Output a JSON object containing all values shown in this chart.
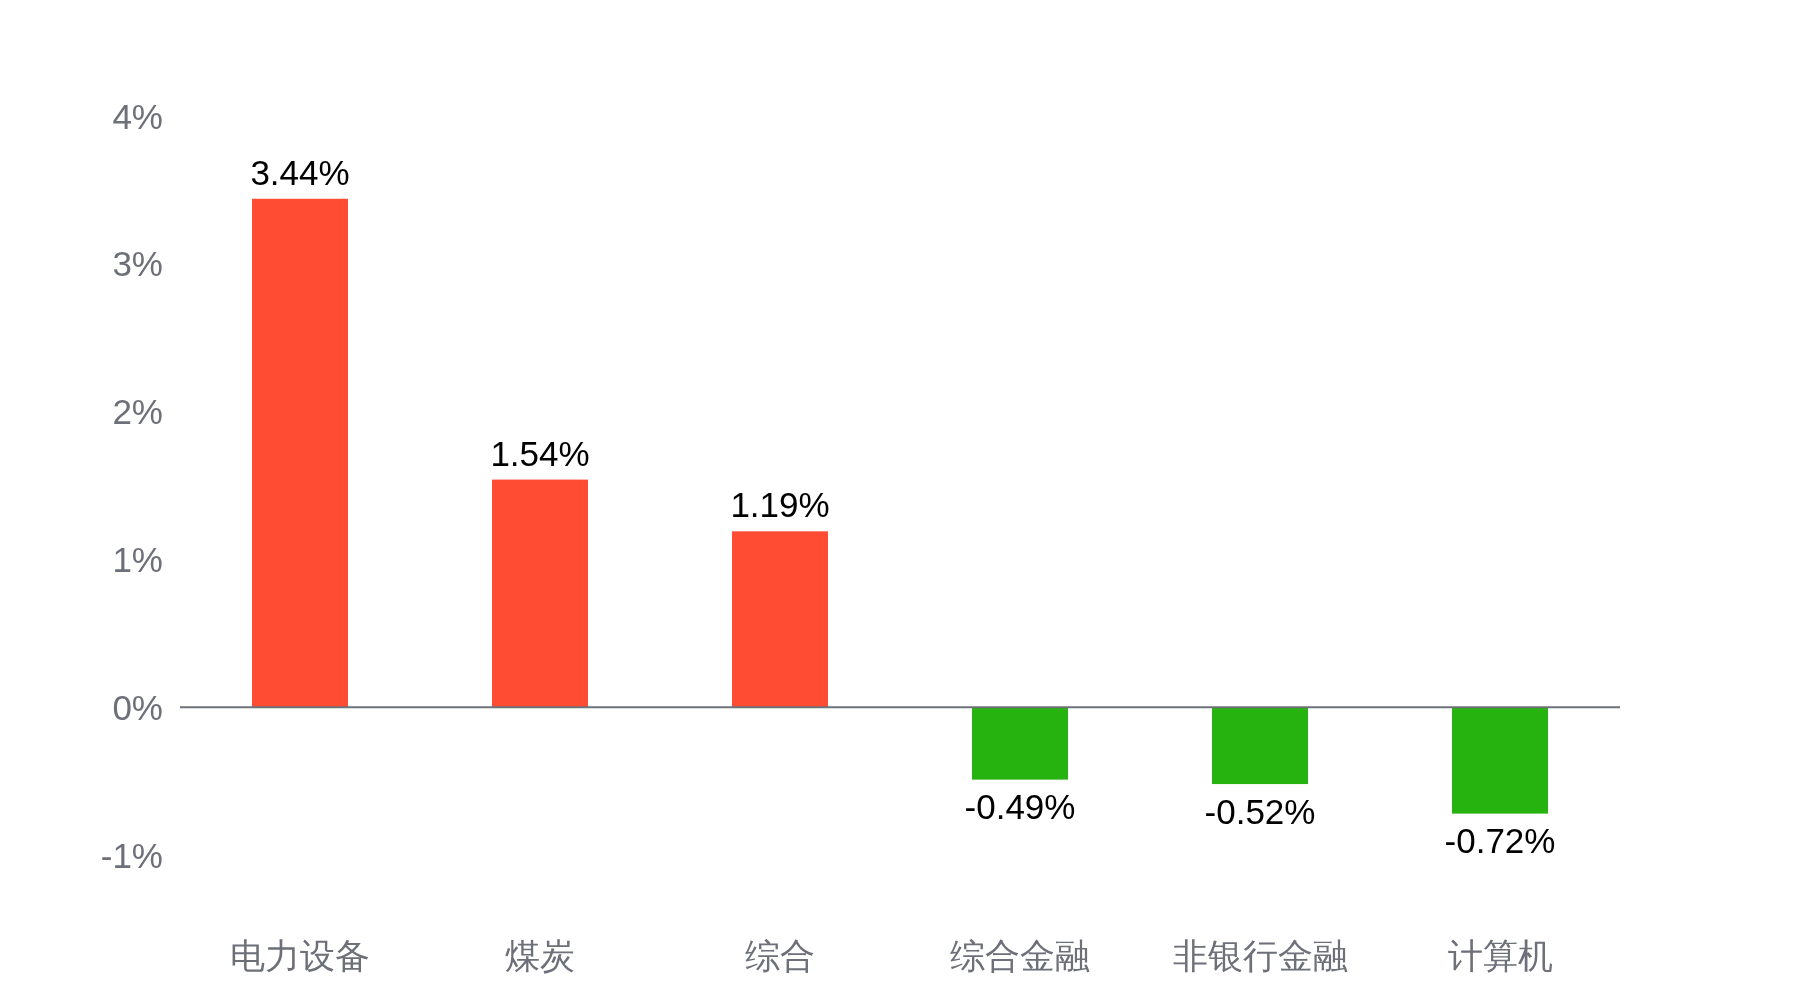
{
  "chart_data": {
    "type": "bar",
    "categories": [
      "电力设备",
      "煤炭",
      "综合",
      "综合金融",
      "非银行金融",
      "计算机"
    ],
    "values": [
      3.44,
      1.54,
      1.19,
      -0.49,
      -0.52,
      -0.72
    ],
    "colors": [
      "#ff4c33",
      "#ff4c33",
      "#ff4c33",
      "#27b30f",
      "#27b30f",
      "#27b30f"
    ],
    "value_labels": [
      "3.44%",
      "1.54%",
      "1.19%",
      "-0.49%",
      "-0.52%",
      "-0.72%"
    ],
    "ylim": [
      -1,
      4
    ],
    "yticks": [
      {
        "value": -1,
        "label": "-1%"
      },
      {
        "value": 0,
        "label": "0%"
      },
      {
        "value": 1,
        "label": "1%"
      },
      {
        "value": 2,
        "label": "2%"
      },
      {
        "value": 3,
        "label": "3%"
      },
      {
        "value": 4,
        "label": "4%"
      }
    ]
  }
}
